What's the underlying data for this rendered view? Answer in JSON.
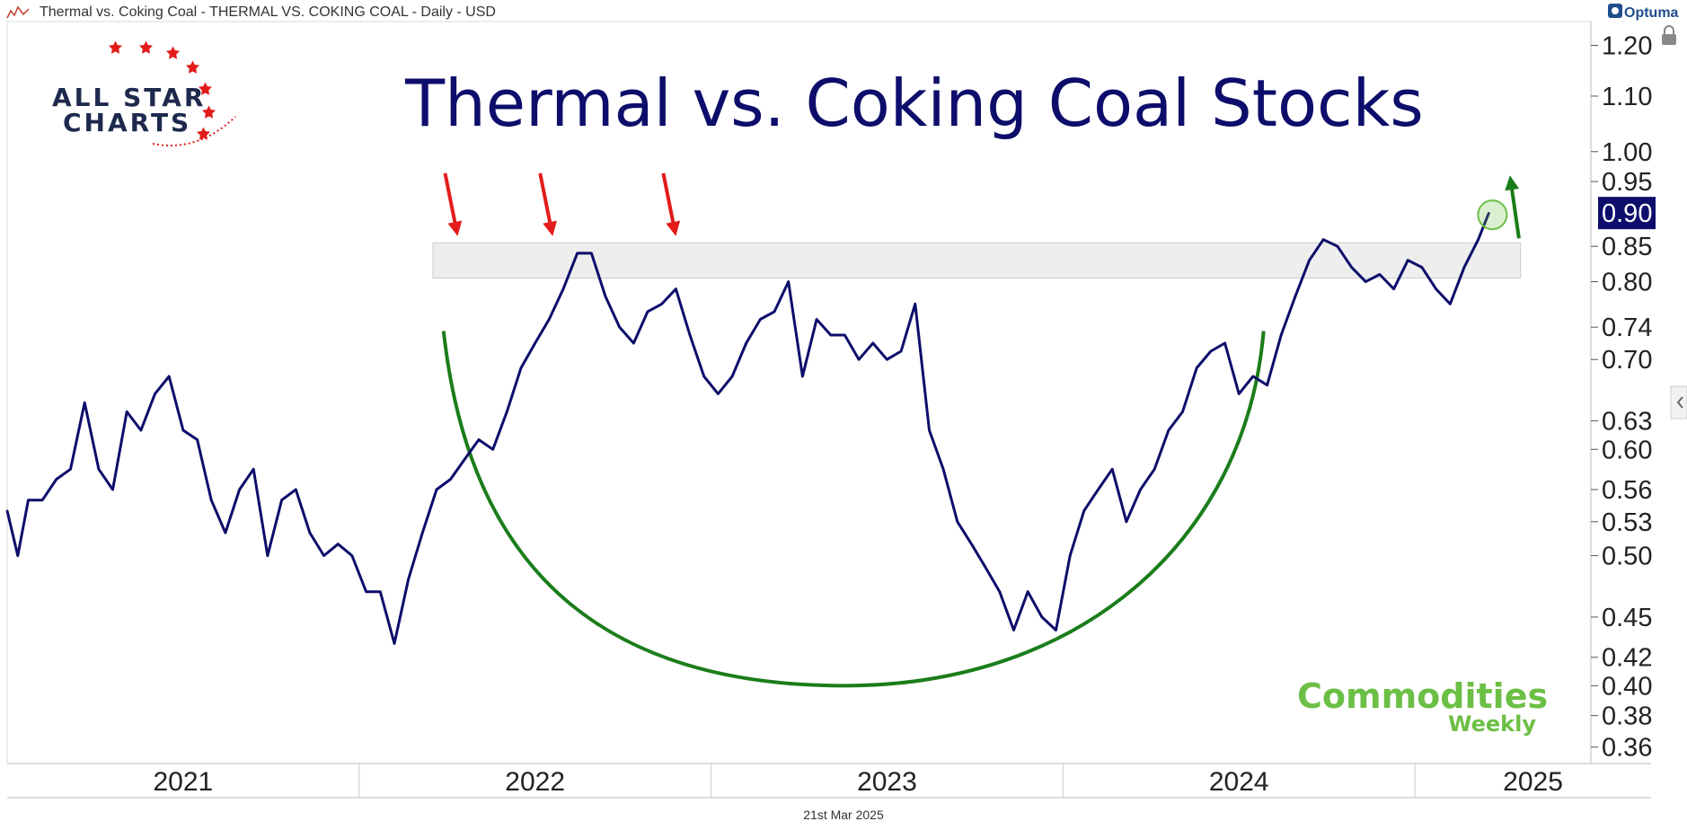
{
  "header": {
    "text": "Thermal vs. Coking Coal - THERMAL VS. COKING COAL - Daily - USD",
    "provider": "Optuma"
  },
  "logo": {
    "line1": "ALL STAR",
    "line2": "CHARTS"
  },
  "watermark": {
    "line1": "Commodities",
    "line2": "Weekly"
  },
  "footer": {
    "date": "21st Mar 2025"
  },
  "colors": {
    "line": "#0d0d6b",
    "title": "#0d0d6b",
    "arc": "#1a7d1a",
    "arrow_red": "#e31b1b",
    "arrow_green": "#1a7d1a",
    "zone": "#eeeeee",
    "watermark": "#6cbf45",
    "last_price_bg": "#0d0d6b"
  },
  "chart_data": {
    "type": "line",
    "title": "Thermal vs. Coking Coal Stocks",
    "series": [
      {
        "name": "Thermal vs. Coking Coal",
        "x": [
          2021.0,
          2021.03,
          2021.06,
          2021.1,
          2021.14,
          2021.18,
          2021.22,
          2021.26,
          2021.3,
          2021.34,
          2021.38,
          2021.42,
          2021.46,
          2021.5,
          2021.54,
          2021.58,
          2021.62,
          2021.66,
          2021.7,
          2021.74,
          2021.78,
          2021.82,
          2021.86,
          2021.9,
          2021.94,
          2021.98,
          2022.02,
          2022.06,
          2022.1,
          2022.14,
          2022.18,
          2022.22,
          2022.26,
          2022.3,
          2022.34,
          2022.38,
          2022.42,
          2022.46,
          2022.5,
          2022.54,
          2022.58,
          2022.62,
          2022.66,
          2022.7,
          2022.74,
          2022.78,
          2022.82,
          2022.86,
          2022.9,
          2022.94,
          2022.98,
          2023.02,
          2023.06,
          2023.1,
          2023.14,
          2023.18,
          2023.22,
          2023.26,
          2023.3,
          2023.34,
          2023.38,
          2023.42,
          2023.46,
          2023.5,
          2023.54,
          2023.58,
          2023.62,
          2023.66,
          2023.7,
          2023.74,
          2023.78,
          2023.82,
          2023.86,
          2023.9,
          2023.94,
          2023.98,
          2024.02,
          2024.06,
          2024.1,
          2024.14,
          2024.18,
          2024.22,
          2024.26,
          2024.3,
          2024.34,
          2024.38,
          2024.42,
          2024.46,
          2024.5,
          2024.54,
          2024.58,
          2024.62,
          2024.66,
          2024.7,
          2024.74,
          2024.78,
          2024.82,
          2024.86,
          2024.9,
          2024.94,
          2024.98,
          2025.02,
          2025.06,
          2025.1,
          2025.14,
          2025.18,
          2025.21
        ],
        "values": [
          0.54,
          0.5,
          0.55,
          0.55,
          0.57,
          0.58,
          0.65,
          0.58,
          0.56,
          0.64,
          0.62,
          0.66,
          0.68,
          0.62,
          0.61,
          0.55,
          0.52,
          0.56,
          0.58,
          0.5,
          0.55,
          0.56,
          0.52,
          0.5,
          0.51,
          0.5,
          0.47,
          0.47,
          0.43,
          0.48,
          0.52,
          0.56,
          0.57,
          0.59,
          0.61,
          0.6,
          0.64,
          0.69,
          0.72,
          0.75,
          0.79,
          0.84,
          0.84,
          0.78,
          0.74,
          0.72,
          0.76,
          0.77,
          0.79,
          0.73,
          0.68,
          0.66,
          0.68,
          0.72,
          0.75,
          0.76,
          0.8,
          0.68,
          0.75,
          0.73,
          0.73,
          0.7,
          0.72,
          0.7,
          0.71,
          0.77,
          0.62,
          0.58,
          0.53,
          0.51,
          0.49,
          0.47,
          0.44,
          0.47,
          0.45,
          0.44,
          0.5,
          0.54,
          0.56,
          0.58,
          0.53,
          0.56,
          0.58,
          0.62,
          0.64,
          0.69,
          0.71,
          0.72,
          0.66,
          0.68,
          0.67,
          0.73,
          0.78,
          0.83,
          0.86,
          0.85,
          0.82,
          0.8,
          0.81,
          0.79,
          0.83,
          0.82,
          0.79,
          0.77,
          0.82,
          0.86,
          0.9
        ]
      }
    ],
    "x_ticks": [
      "2021",
      "2022",
      "2023",
      "2024",
      "2025"
    ],
    "y_ticks": [
      1.2,
      1.1,
      1.0,
      0.95,
      0.85,
      0.8,
      0.74,
      0.7,
      0.63,
      0.6,
      0.56,
      0.53,
      0.5,
      0.45,
      0.42,
      0.4,
      0.38,
      0.36
    ],
    "y_tick_labels": [
      "1.20",
      "1.10",
      "1.00",
      "0.95",
      "0.85",
      "0.80",
      "0.74",
      "0.70",
      "0.63",
      "0.60",
      "0.56",
      "0.53",
      "0.50",
      "0.45",
      "0.42",
      "0.40",
      "0.38",
      "0.36"
    ],
    "last_value_label": "0.90",
    "ylim": [
      0.35,
      1.25
    ],
    "xlim": [
      2021.0,
      2025.5
    ],
    "yscale": "log",
    "resistance_zone": {
      "low": 0.805,
      "high": 0.855,
      "x_start": 2022.21,
      "x_end": 2025.3
    },
    "rounded_bottom": {
      "x_start": 2022.24,
      "x_end": 2024.57,
      "bottom_x": 2023.38,
      "bottom_value": 0.4,
      "top_value": 0.735
    },
    "grid": false,
    "legend": "none"
  }
}
